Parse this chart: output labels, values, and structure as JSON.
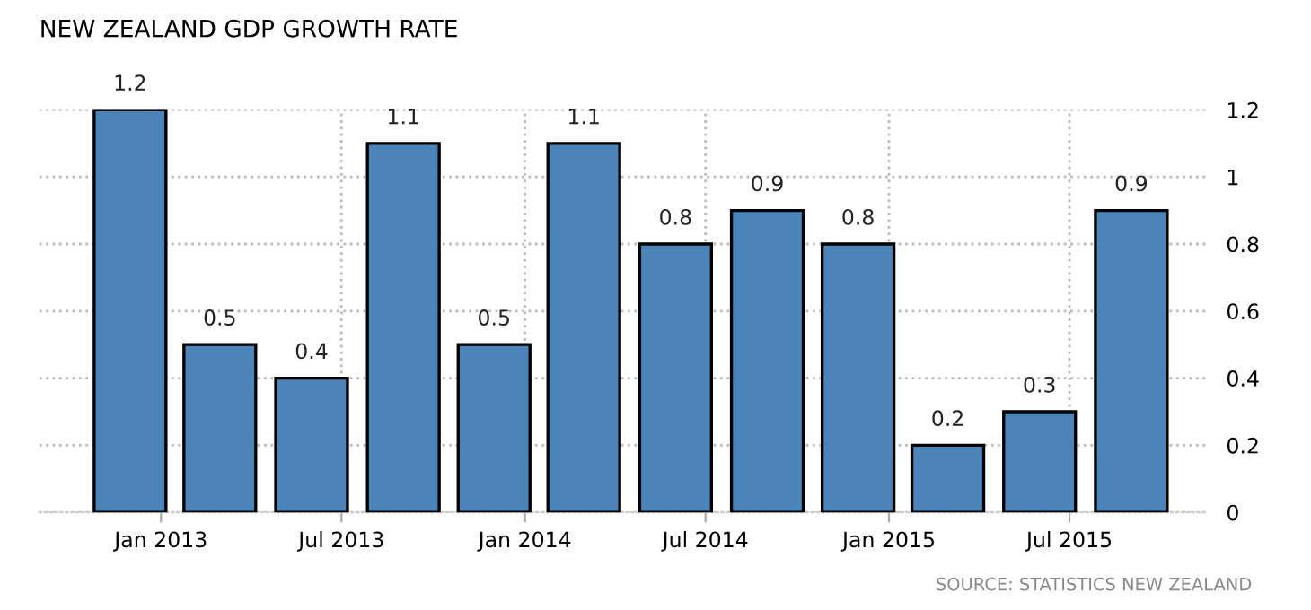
{
  "chart_data": {
    "type": "bar",
    "title": "NEW ZEALAND GDP GROWTH RATE",
    "x": [
      "2012-12",
      "2013-03",
      "2013-06",
      "2013-09",
      "2013-12",
      "2014-03",
      "2014-06",
      "2014-09",
      "2014-12",
      "2015-03",
      "2015-06",
      "2015-09"
    ],
    "values": [
      1.2,
      0.5,
      0.4,
      1.1,
      0.5,
      1.1,
      0.8,
      0.9,
      0.8,
      0.2,
      0.3,
      0.9
    ],
    "color": "#4a84b8",
    "data_labels": true,
    "xlim": [
      "2012-09-01",
      "2015-11-15"
    ],
    "xticks": [
      {
        "value": "2013-01",
        "label": "Jan 2013"
      },
      {
        "value": "2013-07",
        "label": "Jul 2013"
      },
      {
        "value": "2014-01",
        "label": "Jan 2014"
      },
      {
        "value": "2014-07",
        "label": "Jul 2014"
      },
      {
        "value": "2015-01",
        "label": "Jan 2015"
      },
      {
        "value": "2015-07",
        "label": "Jul 2015"
      }
    ],
    "ylim": [
      0,
      1.2
    ],
    "yticks": [
      0,
      0.2,
      0.4,
      0.6,
      0.8,
      1,
      1.2
    ],
    "grid": true,
    "annotations": [
      "SOURCE: STATISTICS NEW ZEALAND"
    ]
  }
}
